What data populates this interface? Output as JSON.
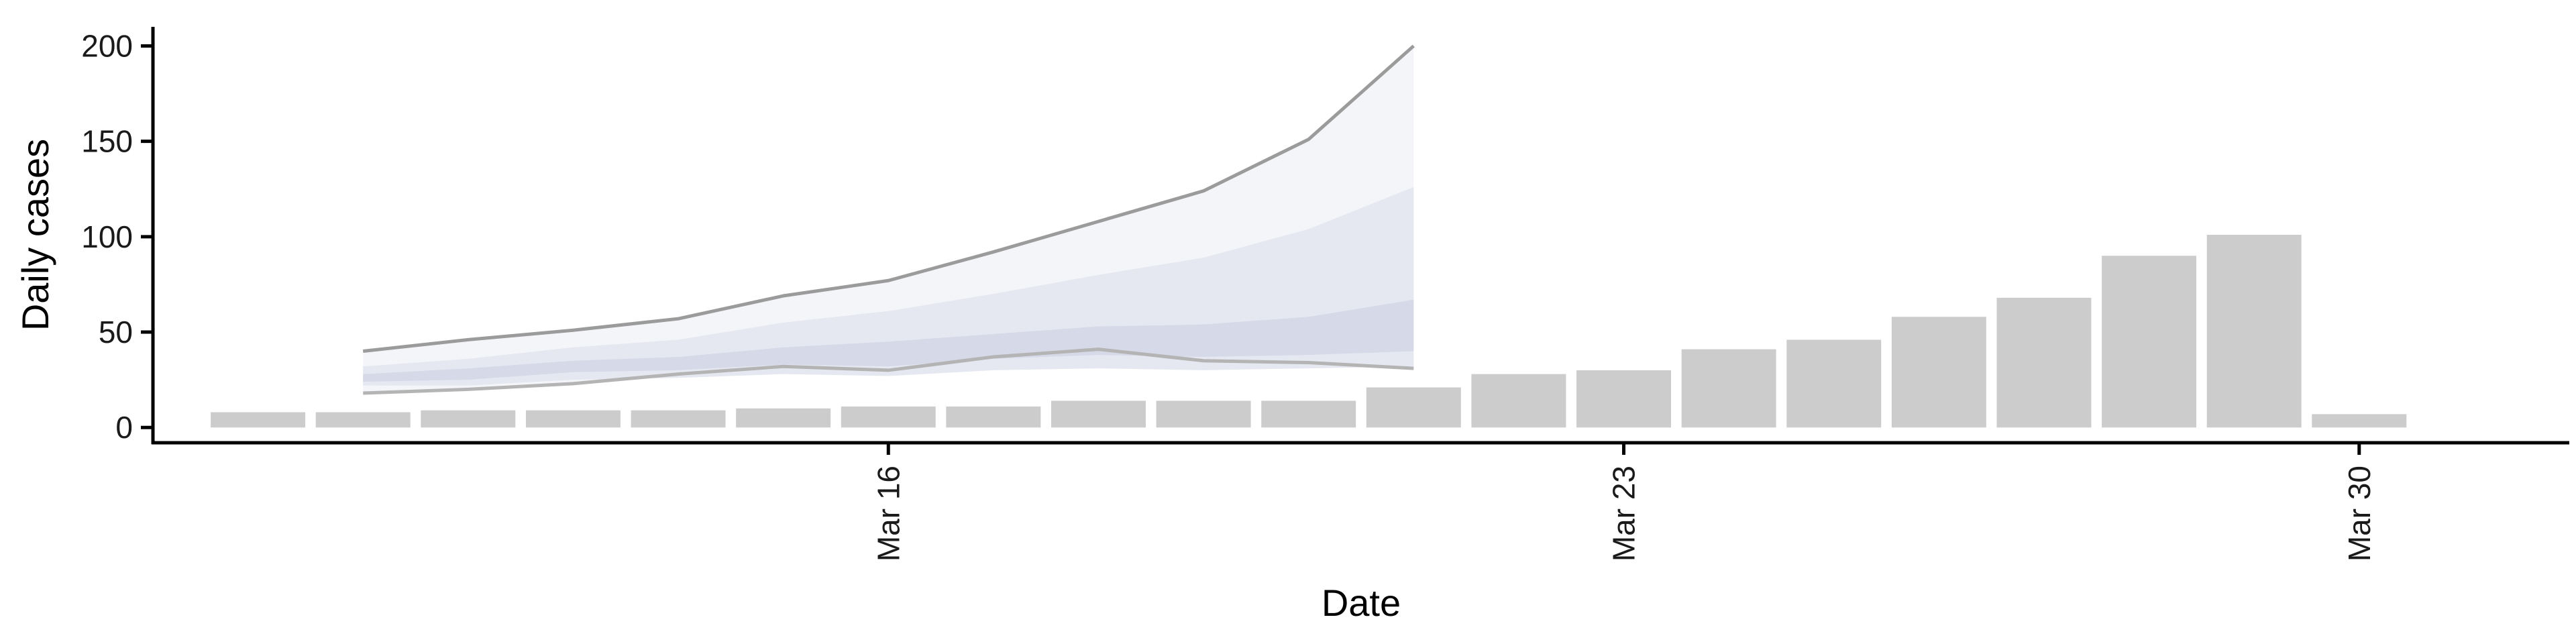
{
  "chart_data": {
    "type": "bar",
    "xlabel": "Date",
    "ylabel": "Daily cases",
    "ylim": [
      -8,
      210
    ],
    "yticks": [
      0,
      50,
      100,
      150,
      200
    ],
    "ytick_labels": [
      "0",
      "50",
      "100",
      "150",
      "200"
    ],
    "xlim": [
      "2020-03-09",
      "2020-04-01"
    ],
    "xticks": [
      "2020-03-16",
      "2020-03-23",
      "2020-03-30"
    ],
    "xtick_labels": [
      "Mar 16",
      "Mar 23",
      "Mar 30"
    ],
    "grid": false,
    "colors": {
      "bars": "#cccccc",
      "axis": "#000000",
      "band_outer": "#f4f5f9",
      "band_mid": "#e6e8f1",
      "band_inner": "#d6d9e8",
      "line_upper": "#9b9b9b",
      "line_lower": "#b4b4b4"
    },
    "observed": {
      "dates": [
        "2020-03-10",
        "2020-03-11",
        "2020-03-12",
        "2020-03-13",
        "2020-03-14",
        "2020-03-15",
        "2020-03-16",
        "2020-03-17",
        "2020-03-18",
        "2020-03-19",
        "2020-03-20",
        "2020-03-21",
        "2020-03-22",
        "2020-03-23",
        "2020-03-24",
        "2020-03-25",
        "2020-03-26",
        "2020-03-27",
        "2020-03-28",
        "2020-03-29",
        "2020-03-30"
      ],
      "values": [
        8,
        8,
        9,
        9,
        9,
        10,
        11,
        11,
        14,
        14,
        14,
        21,
        28,
        30,
        41,
        46,
        58,
        68,
        90,
        101,
        7
      ]
    },
    "forecast": {
      "dates": [
        "2020-03-11",
        "2020-03-12",
        "2020-03-13",
        "2020-03-14",
        "2020-03-15",
        "2020-03-16",
        "2020-03-17",
        "2020-03-18",
        "2020-03-19",
        "2020-03-20",
        "2020-03-21"
      ],
      "upper_90": [
        40,
        46,
        51,
        57,
        69,
        77,
        92,
        108,
        124,
        151,
        200
      ],
      "upper_50": [
        32,
        36,
        42,
        46,
        55,
        61,
        70,
        80,
        89,
        104,
        126
      ],
      "upper_20": [
        28,
        31,
        35,
        37,
        42,
        45,
        49,
        53,
        54,
        58,
        67
      ],
      "lower_20": [
        24,
        25,
        29,
        30,
        33,
        32,
        36,
        38,
        37,
        38,
        40
      ],
      "lower_50": [
        22,
        22,
        25,
        26,
        28,
        27,
        30,
        31,
        30,
        31,
        32
      ],
      "lower_90": [
        18,
        20,
        23,
        28,
        32,
        30,
        37,
        41,
        35,
        34,
        31
      ]
    }
  }
}
